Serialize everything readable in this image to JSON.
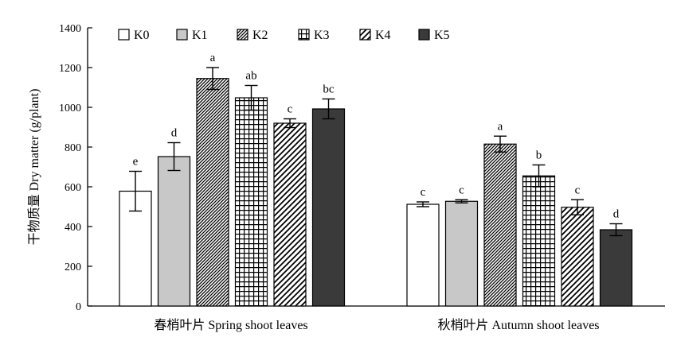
{
  "chart_data": {
    "type": "bar",
    "ylabel": "干物质量 Dry matter (g/plant)",
    "ylim": [
      0,
      1400
    ],
    "yticks": [
      0,
      200,
      400,
      600,
      800,
      1000,
      1200,
      1400
    ],
    "grid": false,
    "legend_position": "top-left",
    "categories": [
      "春梢叶片 Spring shoot leaves",
      "秋梢叶片 Autumn shoot leaves"
    ],
    "series": [
      {
        "name": "K0",
        "pattern": "white",
        "values": [
          578,
          512
        ],
        "errors": [
          100,
          12
        ],
        "labels": [
          "e",
          "c"
        ]
      },
      {
        "name": "K1",
        "pattern": "gray",
        "values": [
          752,
          527
        ],
        "errors": [
          70,
          8
        ],
        "labels": [
          "d",
          "c"
        ]
      },
      {
        "name": "K2",
        "pattern": "diag-dense",
        "values": [
          1145,
          815
        ],
        "errors": [
          55,
          40
        ],
        "labels": [
          "a",
          "a"
        ]
      },
      {
        "name": "K3",
        "pattern": "grid",
        "values": [
          1048,
          655
        ],
        "errors": [
          62,
          55
        ],
        "labels": [
          "ab",
          "b"
        ]
      },
      {
        "name": "K4",
        "pattern": "diag-sparse",
        "values": [
          920,
          497
        ],
        "errors": [
          22,
          38
        ],
        "labels": [
          "c",
          "c"
        ]
      },
      {
        "name": "K5",
        "pattern": "dark",
        "values": [
          992,
          384
        ],
        "errors": [
          50,
          30
        ],
        "labels": [
          "bc",
          "d"
        ]
      }
    ],
    "colors": {
      "axis": "#000000",
      "gray": "#c8c8c8",
      "dark": "#3a3a3a",
      "white": "#ffffff"
    }
  }
}
